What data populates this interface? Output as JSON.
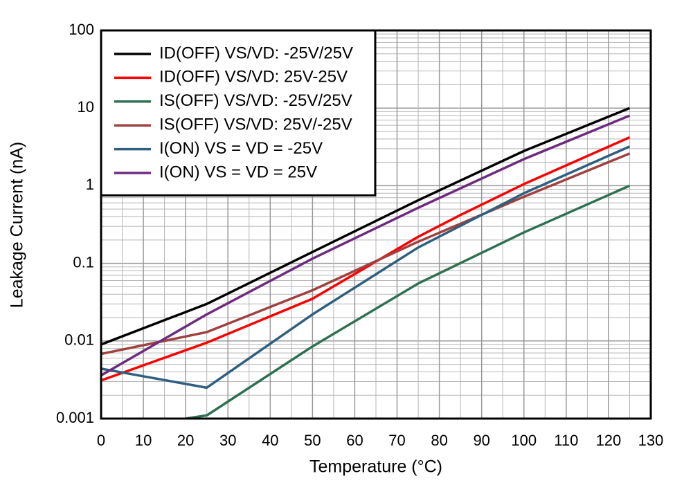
{
  "chart_data": {
    "type": "line",
    "xlabel": "Temperature (°C)",
    "ylabel": "Leakage Current (nA)",
    "xlim": [
      0,
      130
    ],
    "xticks": [
      0,
      10,
      20,
      30,
      40,
      50,
      60,
      70,
      80,
      90,
      100,
      110,
      120,
      130
    ],
    "ylim": [
      0.001,
      100
    ],
    "yticks": [
      0.001,
      0.01,
      0.1,
      1,
      10,
      100
    ],
    "log_y": true,
    "grid": true,
    "minor_grid": true,
    "legend": "upper left",
    "series": [
      {
        "name": "ID(OFF) VS/VD: -25V/25V",
        "color": "#000000",
        "x": [
          0,
          25,
          50,
          75,
          100,
          125
        ],
        "values": [
          0.009,
          0.03,
          0.14,
          0.65,
          2.8,
          10
        ]
      },
      {
        "name": "ID(OFF) VS/VD: 25V-25V",
        "color": "#ff0000",
        "x": [
          0,
          25,
          50,
          75,
          85,
          100,
          125
        ],
        "values": [
          0.0031,
          0.0095,
          0.035,
          0.22,
          0.42,
          1.05,
          4.2
        ]
      },
      {
        "name": "IS(OFF) VS/VD: -25V/25V",
        "color": "#2e7052",
        "x": [
          20,
          25,
          50,
          75,
          100,
          125
        ],
        "values": [
          0.001,
          0.0011,
          0.0085,
          0.055,
          0.25,
          1
        ]
      },
      {
        "name": "IS(OFF) VS/VD: 25V/-25V",
        "color": "#a0403f",
        "x": [
          0,
          25,
          50,
          75,
          100,
          125
        ],
        "values": [
          0.0068,
          0.013,
          0.045,
          0.19,
          0.72,
          2.6
        ]
      },
      {
        "name": "I(ON) VS = VD = -25V",
        "color": "#2e5f80",
        "x": [
          0,
          25,
          50,
          75,
          100,
          125
        ],
        "values": [
          0.0044,
          0.0025,
          0.022,
          0.16,
          0.8,
          3.2
        ]
      },
      {
        "name": "I(ON) VS = VD = 25V",
        "color": "#6e2a7e",
        "x": [
          0,
          25,
          50,
          75,
          100,
          125
        ],
        "values": [
          0.0036,
          0.022,
          0.115,
          0.52,
          2.2,
          8
        ]
      }
    ]
  }
}
